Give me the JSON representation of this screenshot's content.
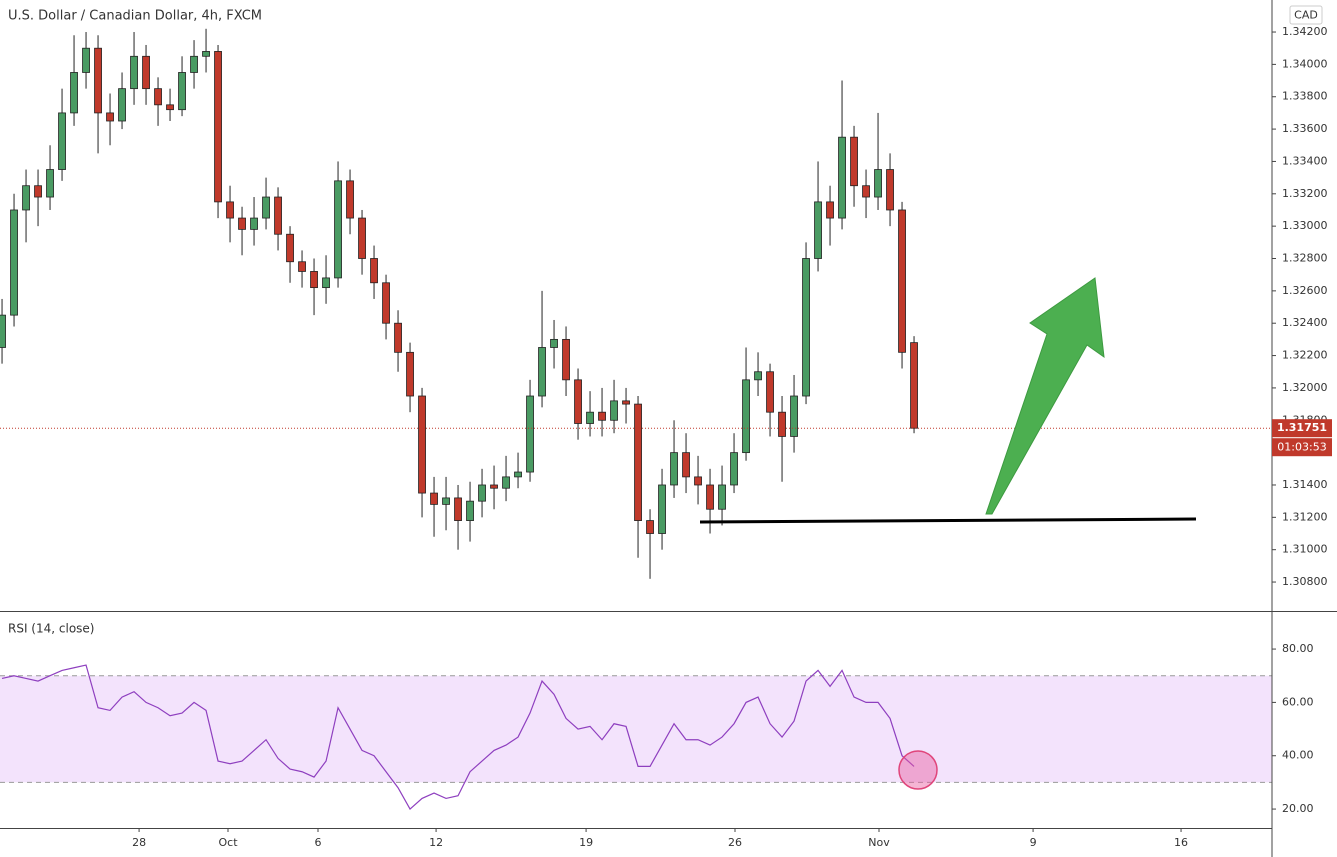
{
  "chart_data": [
    {
      "type": "candlestick",
      "title": "U.S. Dollar / Canadian Dollar, 4h, FXCM",
      "currency": "CAD",
      "open": [
        1.3225,
        1.3245,
        1.331,
        1.3325,
        1.3318,
        1.3335,
        1.337,
        1.3395,
        1.341,
        1.337,
        1.3365,
        1.3385,
        1.3405,
        1.3385,
        1.3375,
        1.3372,
        1.3395,
        1.3405,
        1.3408,
        1.3315,
        1.3305,
        1.3298,
        1.3305,
        1.3318,
        1.3295,
        1.3278,
        1.3272,
        1.3262,
        1.3268,
        1.3328,
        1.3305,
        1.328,
        1.3265,
        1.324,
        1.3222,
        1.3195,
        1.3135,
        1.3128,
        1.3132,
        1.3118,
        1.313,
        1.314,
        1.3138,
        1.3145,
        1.3148,
        1.3195,
        1.3225,
        1.323,
        1.3205,
        1.3178,
        1.3185,
        1.318,
        1.3192,
        1.319,
        1.3118,
        1.311,
        1.314,
        1.316,
        1.3145,
        1.314,
        1.3125,
        1.314,
        1.316,
        1.3205,
        1.321,
        1.3185,
        1.317,
        1.3195,
        1.328,
        1.3315,
        1.3305,
        1.3355,
        1.3325,
        1.3318,
        1.3335,
        1.331,
        1.3228
      ],
      "high": [
        1.3255,
        1.332,
        1.3335,
        1.3335,
        1.335,
        1.3385,
        1.3418,
        1.342,
        1.3418,
        1.3382,
        1.3395,
        1.342,
        1.3412,
        1.3392,
        1.3385,
        1.3405,
        1.3415,
        1.3422,
        1.3412,
        1.3325,
        1.3312,
        1.3318,
        1.333,
        1.3324,
        1.33,
        1.3285,
        1.328,
        1.3282,
        1.334,
        1.3335,
        1.331,
        1.3288,
        1.327,
        1.3248,
        1.3228,
        1.32,
        1.3145,
        1.3145,
        1.314,
        1.3142,
        1.315,
        1.3152,
        1.3158,
        1.316,
        1.3205,
        1.326,
        1.3242,
        1.3238,
        1.3212,
        1.3198,
        1.32,
        1.3205,
        1.32,
        1.3195,
        1.3125,
        1.315,
        1.318,
        1.3172,
        1.3158,
        1.315,
        1.3152,
        1.3172,
        1.3225,
        1.3222,
        1.3215,
        1.3195,
        1.3208,
        1.329,
        1.334,
        1.3325,
        1.339,
        1.3362,
        1.3335,
        1.337,
        1.3345,
        1.3315,
        1.3232
      ],
      "low": [
        1.3215,
        1.3238,
        1.329,
        1.33,
        1.331,
        1.3328,
        1.3362,
        1.3385,
        1.3345,
        1.335,
        1.336,
        1.3375,
        1.3375,
        1.3362,
        1.3365,
        1.3368,
        1.3385,
        1.3395,
        1.3305,
        1.329,
        1.3282,
        1.3288,
        1.3298,
        1.3285,
        1.3265,
        1.3262,
        1.3245,
        1.3252,
        1.3262,
        1.3295,
        1.327,
        1.3255,
        1.323,
        1.321,
        1.3185,
        1.312,
        1.3108,
        1.3112,
        1.31,
        1.3105,
        1.312,
        1.3125,
        1.313,
        1.3138,
        1.3142,
        1.3188,
        1.3212,
        1.3195,
        1.3168,
        1.317,
        1.317,
        1.3172,
        1.3178,
        1.3095,
        1.3082,
        1.31,
        1.3132,
        1.3135,
        1.3128,
        1.311,
        1.3115,
        1.3135,
        1.3155,
        1.3195,
        1.317,
        1.3142,
        1.316,
        1.319,
        1.3272,
        1.3288,
        1.3298,
        1.3312,
        1.3305,
        1.331,
        1.33,
        1.3212,
        1.3172
      ],
      "close": [
        1.3245,
        1.331,
        1.3325,
        1.3318,
        1.3335,
        1.337,
        1.3395,
        1.341,
        1.337,
        1.3365,
        1.3385,
        1.3405,
        1.3385,
        1.3375,
        1.3372,
        1.3395,
        1.3405,
        1.3408,
        1.3315,
        1.3305,
        1.3298,
        1.3305,
        1.3318,
        1.3295,
        1.3278,
        1.3272,
        1.3262,
        1.3268,
        1.3328,
        1.3305,
        1.328,
        1.3265,
        1.324,
        1.3222,
        1.3195,
        1.3135,
        1.3128,
        1.3132,
        1.3118,
        1.313,
        1.314,
        1.3138,
        1.3145,
        1.3148,
        1.3195,
        1.3225,
        1.323,
        1.3205,
        1.3178,
        1.3185,
        1.318,
        1.3192,
        1.319,
        1.3118,
        1.311,
        1.314,
        1.316,
        1.3145,
        1.314,
        1.3125,
        1.314,
        1.316,
        1.3205,
        1.321,
        1.3185,
        1.317,
        1.3195,
        1.328,
        1.3315,
        1.3305,
        1.3355,
        1.3325,
        1.3318,
        1.3335,
        1.331,
        1.3222,
        1.31751
      ],
      "up_color": "#4a9b63",
      "down_color": "#c0392b",
      "wick_color": "#222222",
      "ylim": [
        1.30621,
        1.34398
      ],
      "yticks": [
        {
          "value": 1.342,
          "label": "1.34200"
        },
        {
          "value": 1.34,
          "label": "1.34000"
        },
        {
          "value": 1.338,
          "label": "1.33800"
        },
        {
          "value": 1.336,
          "label": "1.33600"
        },
        {
          "value": 1.334,
          "label": "1.33400"
        },
        {
          "value": 1.332,
          "label": "1.33200"
        },
        {
          "value": 1.33,
          "label": "1.33000"
        },
        {
          "value": 1.328,
          "label": "1.32800"
        },
        {
          "value": 1.326,
          "label": "1.32600"
        },
        {
          "value": 1.324,
          "label": "1.32400"
        },
        {
          "value": 1.322,
          "label": "1.32200"
        },
        {
          "value": 1.32,
          "label": "1.32000"
        },
        {
          "value": 1.318,
          "label": "1.31800"
        },
        {
          "value": 1.316,
          "label": "1.31600"
        },
        {
          "value": 1.314,
          "label": "1.31400"
        },
        {
          "value": 1.312,
          "label": "1.31200"
        },
        {
          "value": 1.31,
          "label": "1.31000"
        },
        {
          "value": 1.308,
          "label": "1.30800"
        }
      ],
      "xlim": [
        -0.17,
        105.83
      ],
      "xticks": [
        {
          "value": 11.42,
          "label": "28"
        },
        {
          "value": 18.83,
          "label": "Oct"
        },
        {
          "value": 26.33,
          "label": "6"
        },
        {
          "value": 36.17,
          "label": "12"
        },
        {
          "value": 48.67,
          "label": "19"
        },
        {
          "value": 61.08,
          "label": "26"
        },
        {
          "value": 73.08,
          "label": "Nov"
        },
        {
          "value": 85.92,
          "label": "9"
        },
        {
          "value": 98.25,
          "label": "16"
        }
      ],
      "last_price": 1.31751,
      "countdown": "01:03:53",
      "grid": false
    },
    {
      "type": "line",
      "title": "RSI (14, close)",
      "values": [
        69,
        70,
        69,
        68,
        70,
        72,
        73,
        74,
        58,
        57,
        62,
        64,
        60,
        58,
        55,
        56,
        60,
        57,
        38,
        37,
        38,
        42,
        46,
        39,
        35,
        34,
        32,
        38,
        58,
        50,
        42,
        40,
        34,
        28,
        20,
        24,
        26,
        24,
        25,
        34,
        38,
        42,
        44,
        47,
        56,
        68,
        63,
        54,
        50,
        51,
        46,
        52,
        51,
        36,
        36,
        44,
        52,
        46,
        46,
        44,
        47,
        52,
        60,
        62,
        52,
        47,
        53,
        68,
        72,
        66,
        72,
        62,
        60,
        60,
        54,
        40,
        36
      ],
      "color": "#8e3fbf",
      "ylim": [
        12.9,
        93.9
      ],
      "yticks": [
        {
          "value": 80,
          "label": "80.00"
        },
        {
          "value": 60,
          "label": "60.00"
        },
        {
          "value": 40,
          "label": "40.00"
        },
        {
          "value": 20,
          "label": "20.00"
        }
      ],
      "band": [
        30,
        70
      ],
      "band_color": "#f3e3fc"
    }
  ]
}
